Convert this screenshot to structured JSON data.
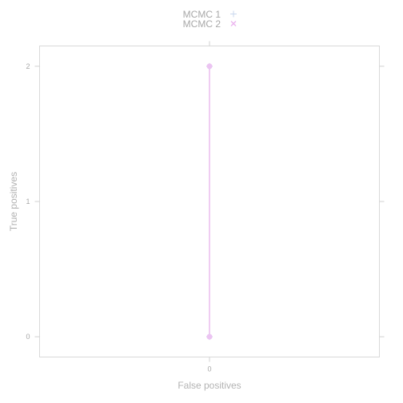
{
  "chart_data": {
    "type": "scatter",
    "xlabel": "False positives",
    "ylabel": "True positives",
    "x_ticks": [
      0
    ],
    "y_ticks": [
      0,
      1,
      2
    ],
    "xlim": [
      -1,
      1
    ],
    "ylim": [
      -0.15,
      2.15
    ],
    "grid": false,
    "legend_position": "top-center",
    "series": [
      {
        "name": "MCMC 1",
        "marker": "plus",
        "color": "#c9d7ee",
        "x": [
          0,
          0
        ],
        "y": [
          0,
          2
        ]
      },
      {
        "name": "MCMC 2",
        "marker": "cross",
        "color": "#f0cdf2",
        "x": [
          0,
          0
        ],
        "y": [
          0,
          2
        ]
      }
    ],
    "line_color": "#f0cdf2",
    "point_fill": "#ecc4f2"
  }
}
